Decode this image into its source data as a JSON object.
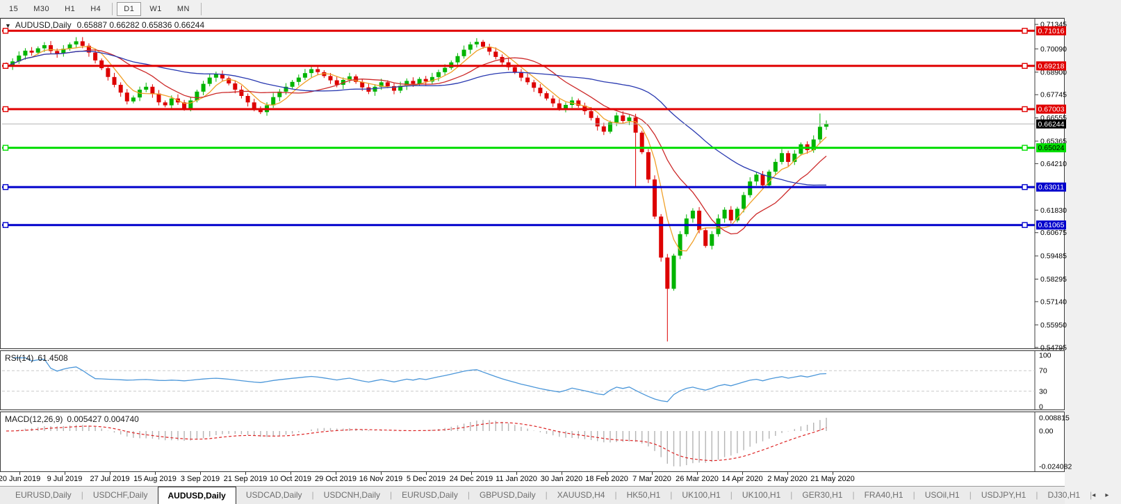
{
  "toolbar": {
    "buttons": [
      {
        "label": "15",
        "active": false
      },
      {
        "label": "M30",
        "active": false
      },
      {
        "label": "H1",
        "active": false
      },
      {
        "label": "H4",
        "active": false
      },
      {
        "label": "D1",
        "active": true
      },
      {
        "label": "W1",
        "active": false
      },
      {
        "label": "MN",
        "active": false
      }
    ]
  },
  "header": {
    "collapse_icon": "▼",
    "symbol": "AUDUSD,Daily",
    "ohlc": [
      "0.65887",
      "0.66282",
      "0.65836",
      "0.66244"
    ]
  },
  "chart_data": {
    "type": "candlestick",
    "title": "AUDUSD,Daily",
    "x_labels": [
      "20 Jun 2019",
      "9 Jul 2019",
      "27 Jul 2019",
      "15 Aug 2019",
      "3 Sep 2019",
      "21 Sep 2019",
      "10 Oct 2019",
      "29 Oct 2019",
      "16 Nov 2019",
      "5 Dec 2019",
      "24 Dec 2019",
      "11 Jan 2020",
      "30 Jan 2020",
      "18 Feb 2020",
      "7 Mar 2020",
      "26 Mar 2020",
      "14 Apr 2020",
      "2 May 2020",
      "21 May 2020"
    ],
    "y_axis_ticks": [
      "0.71345",
      "0.70090",
      "0.68900",
      "0.67745",
      "0.66555",
      "0.65365",
      "0.64210",
      "0.61830",
      "0.60675",
      "0.59485",
      "0.58295",
      "0.57140",
      "0.55950",
      "0.54795"
    ],
    "price_range": {
      "max": 0.7142,
      "min": 0.5468
    },
    "first_open": 0.693,
    "closes": [
      0.692,
      0.6945,
      0.6975,
      0.7,
      0.699,
      0.7012,
      0.7028,
      0.6998,
      0.6985,
      0.701,
      0.7032,
      0.7048,
      0.7025,
      0.699,
      0.695,
      0.691,
      0.6865,
      0.6825,
      0.6785,
      0.674,
      0.676,
      0.68,
      0.6815,
      0.678,
      0.6735,
      0.672,
      0.6755,
      0.6735,
      0.6705,
      0.6745,
      0.679,
      0.683,
      0.6862,
      0.688,
      0.6858,
      0.6832,
      0.68,
      0.6768,
      0.6735,
      0.6705,
      0.6685,
      0.672,
      0.6762,
      0.679,
      0.6815,
      0.684,
      0.6862,
      0.6885,
      0.6905,
      0.689,
      0.687,
      0.6848,
      0.6825,
      0.685,
      0.6868,
      0.684,
      0.6812,
      0.679,
      0.6815,
      0.6838,
      0.6818,
      0.6795,
      0.682,
      0.6845,
      0.683,
      0.6855,
      0.6842,
      0.6865,
      0.689,
      0.6912,
      0.694,
      0.6972,
      0.7005,
      0.7032,
      0.7045,
      0.702,
      0.6995,
      0.6968,
      0.694,
      0.6915,
      0.689,
      0.6862,
      0.6838,
      0.681,
      0.6782,
      0.6755,
      0.673,
      0.6705,
      0.6722,
      0.6745,
      0.6718,
      0.669,
      0.6655,
      0.6612,
      0.6585,
      0.6632,
      0.6668,
      0.664,
      0.6658,
      0.658,
      0.648,
      0.634,
      0.615,
      0.594,
      0.578,
      0.595,
      0.606,
      0.614,
      0.618,
      0.608,
      0.6,
      0.606,
      0.614,
      0.6185,
      0.613,
      0.619,
      0.626,
      0.633,
      0.6365,
      0.631,
      0.638,
      0.643,
      0.6475,
      0.643,
      0.6472,
      0.652,
      0.649,
      0.6545,
      0.661,
      0.6624
    ],
    "wick_overrides": {
      "11": {
        "high": 0.7069
      },
      "28": {
        "low": 0.6692
      },
      "74": {
        "high": 0.7064
      },
      "94": {
        "low": 0.6568
      },
      "99": {
        "low": 0.63
      },
      "104": {
        "low": 0.551
      },
      "128": {
        "high": 0.6678
      }
    },
    "candle_up_color": "#00b400",
    "candle_down_color": "#dd0000",
    "moving_averages": [
      {
        "name": "ma-fast",
        "period": 5,
        "color": "#f0a028"
      },
      {
        "name": "ma-mid",
        "period": 13,
        "color": "#cc2828"
      },
      {
        "name": "ma-slow",
        "period": 34,
        "color": "#2838b0"
      }
    ],
    "horizontal_lines": [
      {
        "price": 0.71016,
        "label": "0.71016",
        "color": "#e00000",
        "text_color": "#ffffff"
      },
      {
        "price": 0.69218,
        "label": "0.69218",
        "color": "#e00000",
        "text_color": "#ffffff"
      },
      {
        "price": 0.67003,
        "label": "0.67003",
        "color": "#e00000",
        "text_color": "#ffffff"
      },
      {
        "price": 0.65024,
        "label": "0.65024",
        "color": "#00dd00",
        "text_color": "#000000"
      },
      {
        "price": 0.63011,
        "label": "0.63011",
        "color": "#0000cc",
        "text_color": "#ffffff"
      },
      {
        "price": 0.61065,
        "label": "0.61065",
        "color": "#0000cc",
        "text_color": "#ffffff"
      }
    ],
    "current_price": {
      "value": 0.66244,
      "label": "0.66244",
      "line_color": "#b4b4b4",
      "label_bg": "#000000",
      "label_text": "#ffffff"
    },
    "indicators": {
      "rsi": {
        "name": "RSI(14)",
        "value": "61.4508",
        "period": 14,
        "axis_labels": [
          "100",
          "70",
          "30",
          "0"
        ],
        "levels": [
          70,
          30
        ],
        "range": [
          0,
          100
        ],
        "line_color": "#4a96d9",
        "level_color": "#c8c8c8"
      },
      "macd": {
        "name": "MACD(12,26,9)",
        "values": [
          "0.005427",
          "0.004740"
        ],
        "axis_labels": [
          "0.008815",
          "0.00",
          "-0.024082"
        ],
        "max": 0.008815,
        "min": -0.024082,
        "hist_color": "#b4b4b4",
        "signal_color": "#dd2222"
      }
    }
  },
  "tabs": {
    "items": [
      {
        "label": "EURUSD,Daily",
        "active": false
      },
      {
        "label": "USDCHF,Daily",
        "active": false
      },
      {
        "label": "AUDUSD,Daily",
        "active": true
      },
      {
        "label": "USDCAD,Daily",
        "active": false
      },
      {
        "label": "USDCNH,Daily",
        "active": false
      },
      {
        "label": "EURUSD,Daily",
        "active": false
      },
      {
        "label": "GBPUSD,Daily",
        "active": false
      },
      {
        "label": "XAUUSD,H4",
        "active": false
      },
      {
        "label": "HK50,H1",
        "active": false
      },
      {
        "label": "UK100,H1",
        "active": false
      },
      {
        "label": "UK100,H1",
        "active": false
      },
      {
        "label": "GER30,H1",
        "active": false
      },
      {
        "label": "FRA40,H1",
        "active": false
      },
      {
        "label": "USOil,H1",
        "active": false
      },
      {
        "label": "USDJPY,H1",
        "active": false
      },
      {
        "label": "DJ30,H1",
        "active": false
      }
    ],
    "separator": "|",
    "left_arrow": "◂",
    "right_arrow": "▸"
  }
}
